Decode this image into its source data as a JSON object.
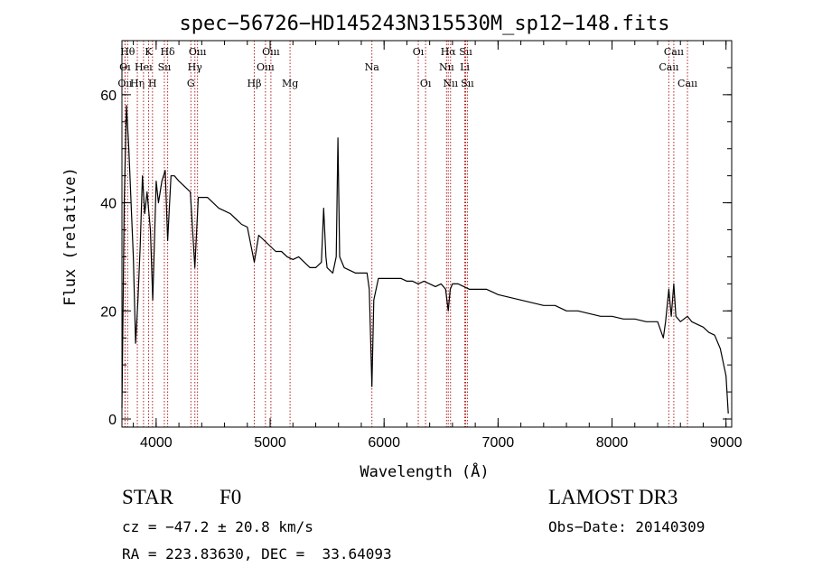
{
  "colors": {
    "spectrum": "#000000",
    "line_marker": "#b22222",
    "axes": "#000000"
  },
  "chart_data": {
    "type": "line",
    "title": "spec−56726−HD145243N315530M_sp12−148.fits",
    "xlabel": "Wavelength (Å)",
    "ylabel": "Flux (relative)",
    "xlim": [
      3700,
      9050
    ],
    "ylim": [
      -1.5,
      70
    ],
    "xticks": [
      4000,
      5000,
      6000,
      7000,
      8000,
      9000
    ],
    "yticks": [
      0,
      20,
      40,
      60
    ],
    "series": [
      {
        "name": "flux",
        "points": [
          [
            3700,
            2
          ],
          [
            3720,
            40
          ],
          [
            3740,
            58
          ],
          [
            3760,
            50
          ],
          [
            3780,
            40
          ],
          [
            3800,
            30
          ],
          [
            3820,
            14
          ],
          [
            3840,
            22
          ],
          [
            3860,
            32
          ],
          [
            3880,
            45
          ],
          [
            3900,
            38
          ],
          [
            3920,
            42
          ],
          [
            3950,
            35
          ],
          [
            3970,
            22
          ],
          [
            4000,
            44
          ],
          [
            4020,
            40
          ],
          [
            4050,
            44
          ],
          [
            4080,
            46
          ],
          [
            4101,
            33
          ],
          [
            4130,
            45
          ],
          [
            4160,
            45
          ],
          [
            4200,
            44
          ],
          [
            4250,
            43
          ],
          [
            4300,
            42
          ],
          [
            4340,
            28
          ],
          [
            4370,
            41
          ],
          [
            4400,
            41
          ],
          [
            4450,
            41
          ],
          [
            4500,
            40
          ],
          [
            4550,
            39
          ],
          [
            4600,
            38.5
          ],
          [
            4650,
            38
          ],
          [
            4700,
            37
          ],
          [
            4750,
            36
          ],
          [
            4800,
            35.5
          ],
          [
            4861,
            29
          ],
          [
            4900,
            34
          ],
          [
            4950,
            33
          ],
          [
            5000,
            32
          ],
          [
            5050,
            31
          ],
          [
            5100,
            31
          ],
          [
            5150,
            30
          ],
          [
            5200,
            29.5
          ],
          [
            5250,
            30
          ],
          [
            5300,
            29
          ],
          [
            5350,
            28
          ],
          [
            5400,
            28
          ],
          [
            5450,
            29
          ],
          [
            5470,
            39
          ],
          [
            5490,
            30
          ],
          [
            5500,
            28
          ],
          [
            5550,
            27
          ],
          [
            5580,
            30
          ],
          [
            5595,
            52
          ],
          [
            5610,
            30
          ],
          [
            5650,
            28
          ],
          [
            5700,
            27.5
          ],
          [
            5750,
            27
          ],
          [
            5800,
            27
          ],
          [
            5850,
            27
          ],
          [
            5870,
            24
          ],
          [
            5893,
            6
          ],
          [
            5910,
            22
          ],
          [
            5950,
            26
          ],
          [
            6000,
            26
          ],
          [
            6050,
            26
          ],
          [
            6100,
            26
          ],
          [
            6150,
            26
          ],
          [
            6200,
            25.5
          ],
          [
            6250,
            25.5
          ],
          [
            6300,
            25
          ],
          [
            6350,
            25.5
          ],
          [
            6400,
            25
          ],
          [
            6450,
            24.5
          ],
          [
            6500,
            25
          ],
          [
            6540,
            24
          ],
          [
            6563,
            20
          ],
          [
            6580,
            24
          ],
          [
            6600,
            25
          ],
          [
            6650,
            25
          ],
          [
            6700,
            24.5
          ],
          [
            6750,
            24
          ],
          [
            6800,
            24
          ],
          [
            6850,
            24
          ],
          [
            6900,
            24
          ],
          [
            6950,
            23.5
          ],
          [
            7000,
            23
          ],
          [
            7100,
            22.5
          ],
          [
            7200,
            22
          ],
          [
            7300,
            21.5
          ],
          [
            7400,
            21
          ],
          [
            7500,
            21
          ],
          [
            7600,
            20
          ],
          [
            7700,
            20
          ],
          [
            7800,
            19.5
          ],
          [
            7900,
            19
          ],
          [
            8000,
            19
          ],
          [
            8100,
            18.5
          ],
          [
            8200,
            18.5
          ],
          [
            8300,
            18
          ],
          [
            8400,
            18
          ],
          [
            8450,
            15
          ],
          [
            8470,
            18
          ],
          [
            8498,
            24
          ],
          [
            8520,
            19
          ],
          [
            8542,
            25
          ],
          [
            8560,
            19
          ],
          [
            8600,
            18
          ],
          [
            8662,
            19
          ],
          [
            8700,
            18
          ],
          [
            8750,
            17.5
          ],
          [
            8800,
            17
          ],
          [
            8850,
            16
          ],
          [
            8900,
            15.5
          ],
          [
            8950,
            13
          ],
          [
            9000,
            8
          ],
          [
            9020,
            1
          ]
        ]
      }
    ],
    "line_markers": [
      {
        "label": "Oı",
        "wl": 3727,
        "row": 2
      },
      {
        "label": "Hθ",
        "wl": 3750,
        "row": 1
      },
      {
        "label": "Oıı",
        "wl": 3727,
        "row": 3
      },
      {
        "label": "Hη",
        "wl": 3835,
        "row": 3
      },
      {
        "label": "Heı",
        "wl": 3889,
        "row": 2
      },
      {
        "label": "K",
        "wl": 3934,
        "row": 1
      },
      {
        "label": "H",
        "wl": 3968,
        "row": 3
      },
      {
        "label": "Sıı",
        "wl": 4072,
        "row": 2
      },
      {
        "label": "Hδ",
        "wl": 4101,
        "row": 1
      },
      {
        "label": "G",
        "wl": 4305,
        "row": 3
      },
      {
        "label": "Hγ",
        "wl": 4340,
        "row": 2
      },
      {
        "label": "Oııı",
        "wl": 4363,
        "row": 1
      },
      {
        "label": "Hβ",
        "wl": 4861,
        "row": 3
      },
      {
        "label": "Oııı",
        "wl": 4959,
        "row": 2
      },
      {
        "label": "Oııı",
        "wl": 5007,
        "row": 1
      },
      {
        "label": "Mg",
        "wl": 5175,
        "row": 3
      },
      {
        "label": "Na",
        "wl": 5893,
        "row": 2
      },
      {
        "label": "Oı",
        "wl": 6300,
        "row": 1
      },
      {
        "label": "Oı",
        "wl": 6364,
        "row": 3
      },
      {
        "label": "Nıı",
        "wl": 6548,
        "row": 2
      },
      {
        "label": "Hα",
        "wl": 6563,
        "row": 1
      },
      {
        "label": "Nıı",
        "wl": 6583,
        "row": 3
      },
      {
        "label": "Sıı",
        "wl": 6716,
        "row": 1
      },
      {
        "label": "Li",
        "wl": 6708,
        "row": 2
      },
      {
        "label": "Sıı",
        "wl": 6731,
        "row": 3
      },
      {
        "label": "Caıı",
        "wl": 8498,
        "row": 2
      },
      {
        "label": "Caıı",
        "wl": 8542,
        "row": 1
      },
      {
        "label": "Caıı",
        "wl": 8662,
        "row": 3
      }
    ]
  },
  "info": {
    "class_label": "STAR",
    "subclass": "F0",
    "survey": "LAMOST DR3",
    "cz": "cz = −47.2 ± 20.8 km/s",
    "obs_date": "Obs−Date: 20140309",
    "coords": "RA = 223.83630, DEC =  33.64093"
  }
}
